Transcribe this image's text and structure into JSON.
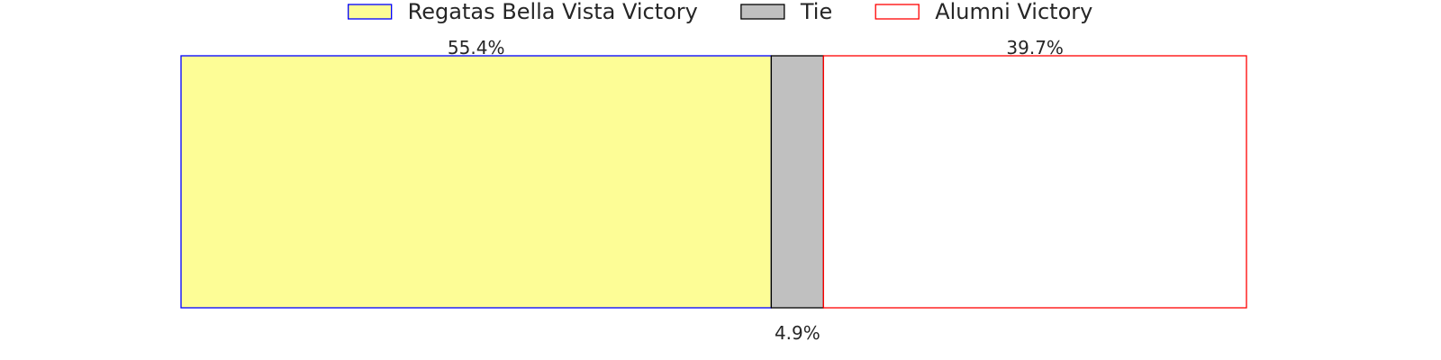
{
  "chart_data": {
    "type": "bar",
    "orientation": "horizontal-stacked",
    "categories": [
      ""
    ],
    "series": [
      {
        "name": "Regatas Bella Vista Victory",
        "values": [
          55.4
        ],
        "label": "55.4%",
        "fill": "#fdfd96",
        "stroke": "#0000ff",
        "label_position": "above"
      },
      {
        "name": "Tie",
        "values": [
          4.9
        ],
        "label": "4.9%",
        "fill": "#c0c0c0",
        "stroke": "#000000",
        "label_position": "below"
      },
      {
        "name": "Alumni Victory",
        "values": [
          39.7
        ],
        "label": "39.7%",
        "fill": "#ffffff",
        "stroke": "#ff0000",
        "label_position": "above"
      }
    ],
    "xlim": [
      0,
      100
    ],
    "grid": false,
    "legend_placement": "top-center"
  }
}
